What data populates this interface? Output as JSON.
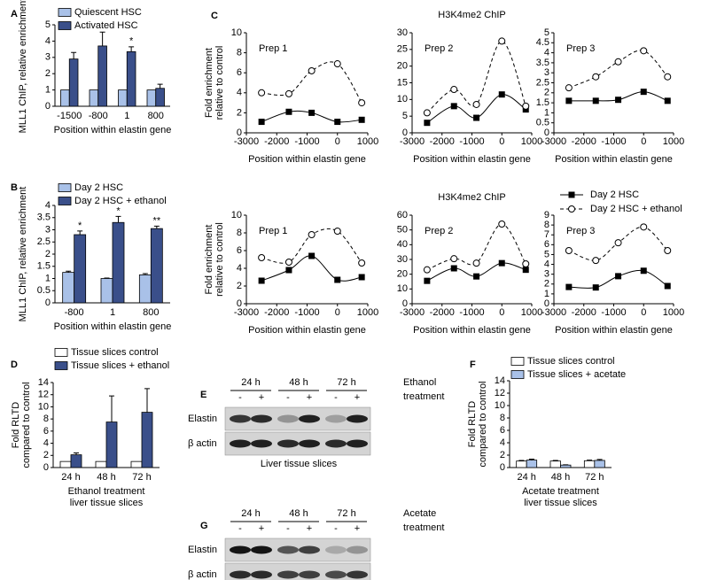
{
  "chart_data": [
    {
      "panel": "A",
      "type": "bar",
      "categories": [
        "-1500",
        "-800",
        "1",
        "800"
      ],
      "series": [
        {
          "name": "Quiescent HSC",
          "color": "#a9c1e8",
          "values": [
            1,
            1,
            1,
            1
          ]
        },
        {
          "name": "Activated HSC",
          "color": "#3a4f8a",
          "values": [
            2.9,
            3.7,
            3.35,
            1.1
          ],
          "errors": [
            0.4,
            0.85,
            0.3,
            0.25
          ],
          "significance": [
            null,
            null,
            "*",
            null
          ]
        }
      ],
      "ylim": [
        0,
        5
      ],
      "yticks": [
        0,
        1,
        2,
        3,
        4,
        5
      ],
      "ylabel": [
        "MLL1 ChIP, relative enrichment"
      ],
      "xlabel": [
        "Position within elastin gene"
      ],
      "legend": "top-left"
    },
    {
      "panel": "B",
      "type": "bar",
      "categories": [
        "-800",
        "1",
        "800"
      ],
      "series": [
        {
          "name": "Day 2 HSC",
          "color": "#a9c1e8",
          "values": [
            1.25,
            1,
            1.15
          ],
          "errors": [
            0.05,
            0.02,
            0.05
          ]
        },
        {
          "name": "Day 2 HSC + ethanol",
          "color": "#3a4f8a",
          "values": [
            2.8,
            3.3,
            3.05
          ],
          "errors": [
            0.15,
            0.25,
            0.1
          ],
          "significance": [
            "*",
            "*",
            "**"
          ]
        }
      ],
      "ylim": [
        0,
        4
      ],
      "yticks": [
        0,
        0.5,
        1,
        1.5,
        2,
        2.5,
        3,
        3.5,
        4
      ],
      "ylabel": [
        "MLL1 ChIP, relative enrichment"
      ],
      "xlabel": [
        "Position within elastin gene"
      ],
      "legend": "top-left"
    },
    {
      "panel": "C",
      "type": "line",
      "annotation": "Prep 1",
      "x": [
        -2500,
        -1600,
        -850,
        0,
        800
      ],
      "series": [
        {
          "color": "#000000",
          "line_style": "solid",
          "marker": "square",
          "values": [
            1.1,
            2.1,
            2.0,
            1.1,
            1.3
          ]
        },
        {
          "color": "#000000",
          "line_style": "dashed",
          "marker": "circle",
          "values": [
            4,
            3.9,
            6.2,
            6.9,
            3
          ]
        }
      ],
      "xlim": [
        -3000,
        1000
      ],
      "xticks": [
        -3000,
        -2000,
        -1000,
        0,
        1000
      ],
      "ylim": [
        0,
        10
      ],
      "yticks": [
        0,
        2,
        4,
        6,
        8,
        10
      ],
      "ylabel": [
        "Fold enrichment",
        "relative to control"
      ],
      "xlabel": [
        "Position within elastin gene"
      ]
    },
    {
      "type": "line",
      "title": "H3K4me2 ChIP",
      "annotation": "Prep 2",
      "x": [
        -2500,
        -1600,
        -850,
        0,
        800
      ],
      "series": [
        {
          "color": "#000000",
          "line_style": "solid",
          "marker": "square",
          "values": [
            3,
            8,
            4.5,
            11.5,
            7
          ]
        },
        {
          "color": "#000000",
          "line_style": "dashed",
          "marker": "circle",
          "values": [
            6,
            13,
            8.5,
            27.5,
            8
          ]
        }
      ],
      "xlim": [
        -3000,
        1000
      ],
      "xticks": [
        -3000,
        -2000,
        -1000,
        0,
        1000
      ],
      "ylim": [
        0,
        30
      ],
      "yticks": [
        0,
        5,
        10,
        15,
        20,
        25,
        30
      ],
      "xlabel": [
        "Position within elastin gene"
      ]
    },
    {
      "type": "line",
      "annotation": "Prep 3",
      "x": [
        -2500,
        -1600,
        -850,
        0,
        800
      ],
      "series": [
        {
          "color": "#000000",
          "line_style": "solid",
          "marker": "square",
          "values": [
            1.6,
            1.6,
            1.65,
            2.05,
            1.6
          ]
        },
        {
          "color": "#000000",
          "line_style": "dashed",
          "marker": "circle",
          "values": [
            2.25,
            2.8,
            3.55,
            4.1,
            2.8
          ]
        }
      ],
      "xlim": [
        -3000,
        1000
      ],
      "xticks": [
        -3000,
        -2000,
        -1000,
        0,
        1000
      ],
      "ylim": [
        0,
        5
      ],
      "yticks": [
        0,
        0.5,
        1,
        1.5,
        2,
        2.5,
        3,
        3.5,
        4,
        4.5,
        5
      ],
      "xlabel": [
        "Position within elastin gene"
      ]
    },
    {
      "type": "line",
      "annotation": "Prep 1",
      "x": [
        -2500,
        -1600,
        -850,
        0,
        800
      ],
      "series": [
        {
          "color": "#000000",
          "line_style": "solid",
          "marker": "square",
          "values": [
            2.6,
            3.8,
            5.4,
            2.7,
            3.0
          ]
        },
        {
          "color": "#000000",
          "line_style": "dashed",
          "marker": "circle",
          "values": [
            5.2,
            4.7,
            7.8,
            8.2,
            4.6
          ]
        }
      ],
      "xlim": [
        -3000,
        1000
      ],
      "xticks": [
        -3000,
        -2000,
        -1000,
        0,
        1000
      ],
      "ylim": [
        0,
        10
      ],
      "yticks": [
        0,
        2,
        4,
        6,
        8,
        10
      ],
      "ylabel": [
        "Fold enrichment",
        "relative to control"
      ],
      "xlabel": [
        "Position within elastin gene"
      ]
    },
    {
      "type": "line",
      "title": "H3K4me2 ChIP",
      "annotation": "Prep 2",
      "x": [
        -2500,
        -1600,
        -850,
        0,
        800
      ],
      "series": [
        {
          "color": "#000000",
          "line_style": "solid",
          "marker": "square",
          "values": [
            15.5,
            24,
            18.5,
            27.5,
            23
          ]
        },
        {
          "color": "#000000",
          "line_style": "dashed",
          "marker": "circle",
          "values": [
            23,
            30.5,
            27.5,
            54,
            27
          ]
        }
      ],
      "xlim": [
        -3000,
        1000
      ],
      "xticks": [
        -3000,
        -2000,
        -1000,
        0,
        1000
      ],
      "ylim": [
        0,
        60
      ],
      "yticks": [
        0,
        10,
        20,
        30,
        40,
        50,
        60
      ],
      "xlabel": [
        "Position within elastin gene"
      ]
    },
    {
      "type": "line",
      "annotation": "Prep 3",
      "x": [
        -2500,
        -1600,
        -850,
        0,
        800
      ],
      "series": [
        {
          "name": "Day 2 HSC",
          "color": "#000000",
          "line_style": "solid",
          "marker": "square",
          "values": [
            1.7,
            1.65,
            2.8,
            3.35,
            1.8
          ]
        },
        {
          "name": "Day 2 HSC + ethanol",
          "color": "#000000",
          "line_style": "dashed",
          "marker": "circle",
          "values": [
            5.4,
            4.4,
            6.2,
            7.8,
            5.4
          ]
        }
      ],
      "xlim": [
        -3000,
        1000
      ],
      "xticks": [
        -3000,
        -2000,
        -1000,
        0,
        1000
      ],
      "ylim": [
        0,
        9
      ],
      "yticks": [
        0,
        1,
        2,
        3,
        4,
        5,
        6,
        7,
        8,
        9
      ],
      "xlabel": [
        "Position within elastin gene"
      ],
      "legend": "top-right"
    },
    {
      "panel": "D",
      "type": "bar",
      "categories": [
        "24 h",
        "48 h",
        "72 h"
      ],
      "series": [
        {
          "name": "Tissue slices control",
          "color": "#ffffff",
          "values": [
            1,
            1,
            1
          ]
        },
        {
          "name": "Tissue slices + ethanol",
          "color": "#3a4f8a",
          "values": [
            2.1,
            7.5,
            9.1
          ],
          "errors": [
            0.3,
            4.3,
            3.9
          ]
        }
      ],
      "ylim": [
        0,
        14
      ],
      "yticks": [
        0,
        2,
        4,
        6,
        8,
        10,
        12,
        14
      ],
      "ylabel": [
        "Fold RLTD",
        "compared to control"
      ],
      "xlabel": [
        "Ethanol treatment",
        "liver tissue slices"
      ],
      "legend": "top-left"
    },
    {
      "panel": "F",
      "type": "bar",
      "categories": [
        "24 h",
        "48 h",
        "72 h"
      ],
      "series": [
        {
          "name": "Tissue slices control",
          "color": "#ffffff",
          "values": [
            1.05,
            1.05,
            1.1
          ],
          "errors": [
            0.1,
            0.1,
            0.1
          ]
        },
        {
          "name": "Tissue slices + acetate",
          "color": "#a9c1e8",
          "values": [
            1.2,
            0.4,
            1.15
          ],
          "errors": [
            0.15,
            0.05,
            0.15
          ]
        }
      ],
      "ylim": [
        0,
        14
      ],
      "yticks": [
        0,
        2,
        4,
        6,
        8,
        10,
        12,
        14
      ],
      "ylabel": [
        "Fold RLTD",
        "compared to control"
      ],
      "xlabel": [
        "Acetate treatment",
        "liver tissue slices"
      ],
      "legend": "top-left"
    }
  ],
  "blots": [
    {
      "panel": "E",
      "time_points": [
        "24 h",
        "48 h",
        "72 h"
      ],
      "lanes": [
        "-",
        "+",
        "-",
        "+",
        "-",
        "+"
      ],
      "rows": [
        "Elastin",
        "β actin"
      ],
      "treatment": [
        "Ethanol",
        "treatment"
      ],
      "caption": "Liver tissue slices"
    },
    {
      "panel": "G",
      "time_points": [
        "24 h",
        "48 h",
        "72 h"
      ],
      "lanes": [
        "-",
        "+",
        "-",
        "+",
        "-",
        "+"
      ],
      "rows": [
        "Elastin",
        "β actin"
      ],
      "treatment": [
        "Acetate",
        "treatment"
      ]
    }
  ]
}
